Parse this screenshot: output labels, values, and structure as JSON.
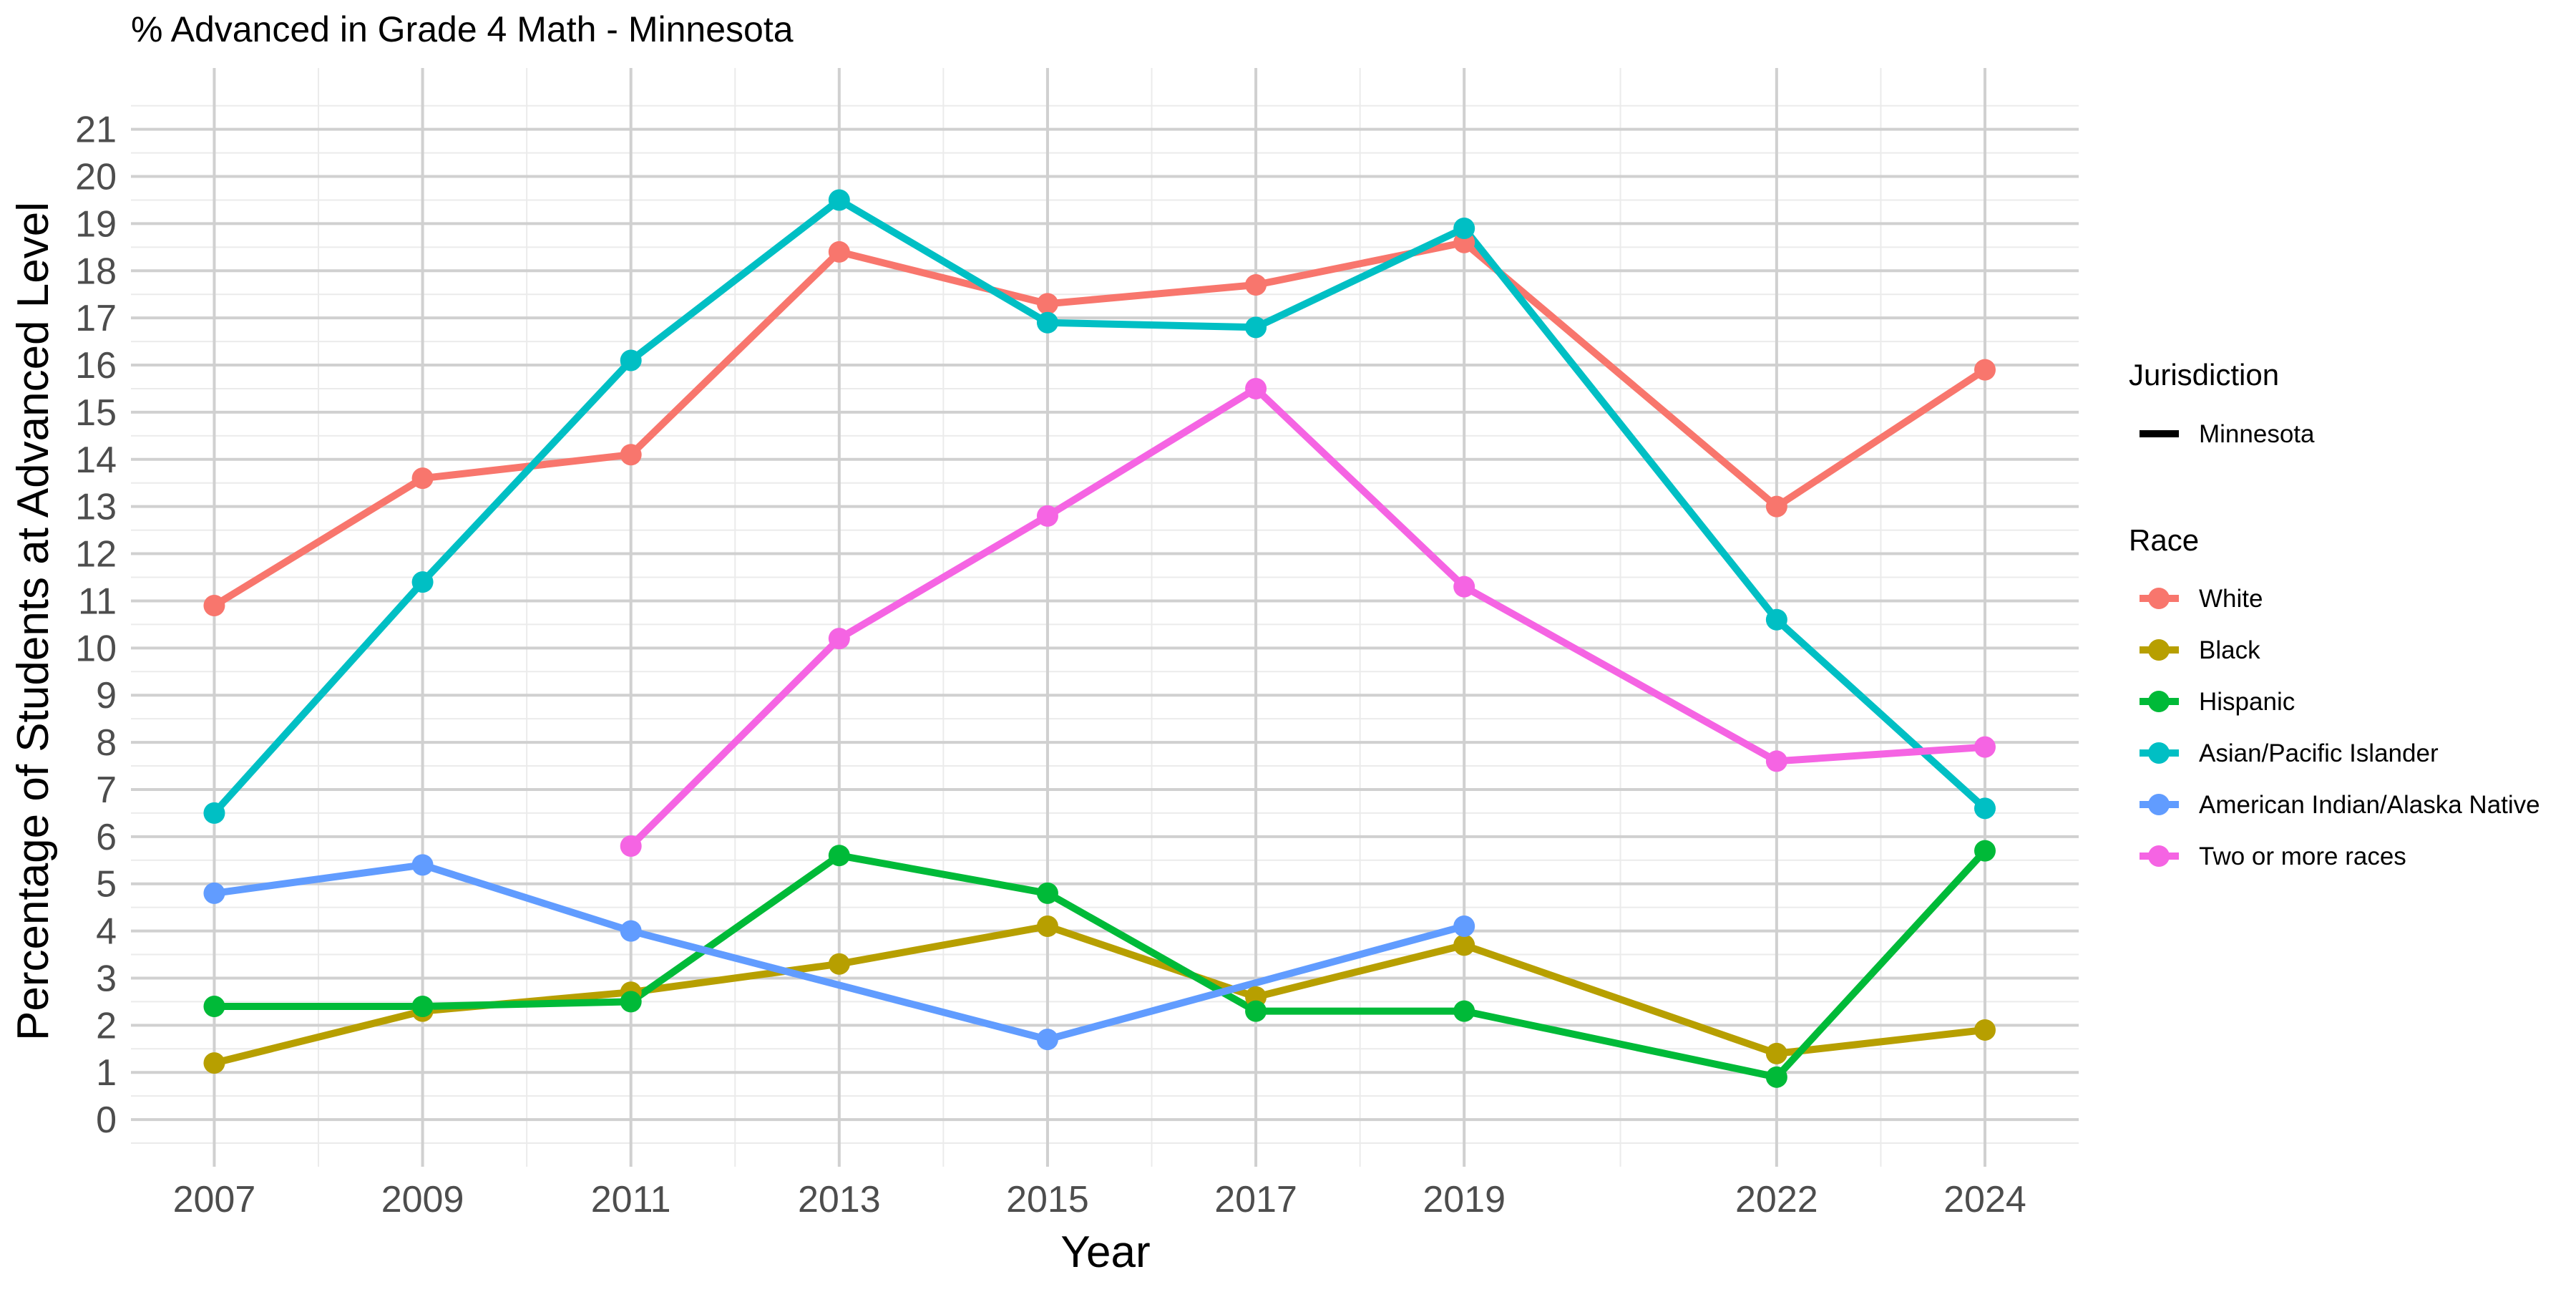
{
  "chart_data": {
    "type": "line",
    "title": "% Advanced in Grade 4 Math - Minnesota",
    "xlabel": "Year",
    "ylabel": "Percentage of Students at Advanced Level",
    "x_ticks": [
      2007,
      2009,
      2011,
      2013,
      2015,
      2017,
      2019,
      2022,
      2024
    ],
    "y_ticks": [
      0,
      1,
      2,
      3,
      4,
      5,
      6,
      7,
      8,
      9,
      10,
      11,
      12,
      13,
      14,
      15,
      16,
      17,
      18,
      19,
      20,
      21
    ],
    "xlim": [
      2006.2,
      2024.9
    ],
    "ylim": [
      -1,
      22.3
    ],
    "grid": true,
    "legend_position": "right",
    "legend": {
      "jurisdiction_title": "Jurisdiction",
      "jurisdiction_items": [
        "Minnesota"
      ],
      "race_title": "Race"
    },
    "series": [
      {
        "name": "White",
        "color": "#F8766D",
        "x": [
          2007,
          2009,
          2011,
          2013,
          2015,
          2017,
          2019,
          2022,
          2024
        ],
        "values": [
          10.9,
          13.6,
          14.1,
          18.4,
          17.3,
          17.7,
          18.6,
          13.0,
          15.9
        ]
      },
      {
        "name": "Black",
        "color": "#B79F00",
        "x": [
          2007,
          2009,
          2011,
          2013,
          2015,
          2017,
          2019,
          2022,
          2024
        ],
        "values": [
          1.2,
          2.3,
          2.7,
          3.3,
          4.1,
          2.6,
          3.7,
          1.4,
          1.9
        ]
      },
      {
        "name": "Hispanic",
        "color": "#00BA38",
        "x": [
          2007,
          2009,
          2011,
          2013,
          2015,
          2017,
          2019,
          2022,
          2024
        ],
        "values": [
          2.4,
          2.4,
          2.5,
          5.6,
          4.8,
          2.3,
          2.3,
          0.9,
          5.7
        ]
      },
      {
        "name": "Asian/Pacific Islander",
        "color": "#00BFC4",
        "x": [
          2007,
          2009,
          2011,
          2013,
          2015,
          2017,
          2019,
          2022,
          2024
        ],
        "values": [
          6.5,
          11.4,
          16.1,
          19.5,
          16.9,
          16.8,
          18.9,
          10.6,
          6.6
        ]
      },
      {
        "name": "American Indian/Alaska Native",
        "color": "#619CFF",
        "x": [
          2007,
          2009,
          2011,
          2015,
          2019
        ],
        "values": [
          4.8,
          5.4,
          4.0,
          1.7,
          4.1
        ]
      },
      {
        "name": "Two or more races",
        "color": "#F564E3",
        "x": [
          2011,
          2013,
          2015,
          2017,
          2019,
          2022,
          2024
        ],
        "values": [
          5.8,
          10.2,
          12.8,
          15.5,
          11.3,
          7.6,
          7.9
        ]
      }
    ]
  }
}
